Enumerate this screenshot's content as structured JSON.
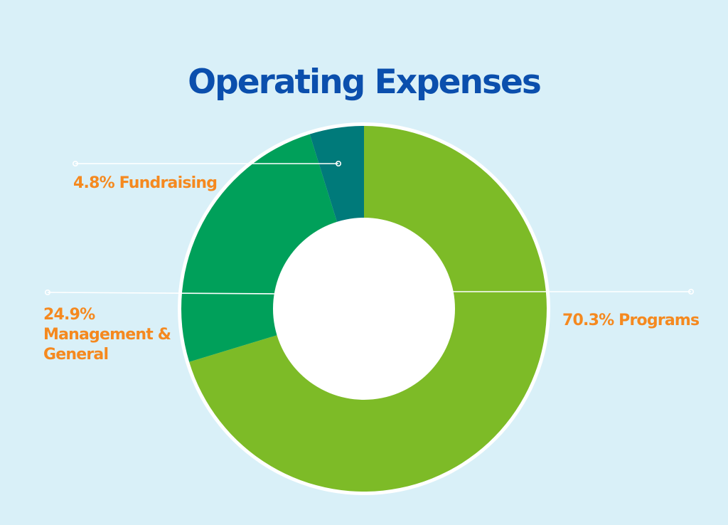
{
  "colors": {
    "background": "#d9f0f8",
    "title": "#0b4fad",
    "label": "#f5891f",
    "programs": "#7dbb27",
    "management": "#00a05a",
    "fundraising": "#007a7a",
    "ring": "#ffffff"
  },
  "chart_data": {
    "type": "pie",
    "title": "Operating Expenses",
    "hole": true,
    "slices": [
      {
        "name": "Programs",
        "value": 70.3,
        "label_lines": [
          "70.3% Programs"
        ],
        "color": "#7dbb27"
      },
      {
        "name": "Management & General",
        "value": 24.9,
        "label_lines": [
          "24.9%",
          "Management &",
          "General"
        ],
        "color": "#00a05a"
      },
      {
        "name": "Fundraising",
        "value": 4.8,
        "label_lines": [
          "4.8% Fundraising"
        ],
        "color": "#007a7a"
      }
    ]
  }
}
